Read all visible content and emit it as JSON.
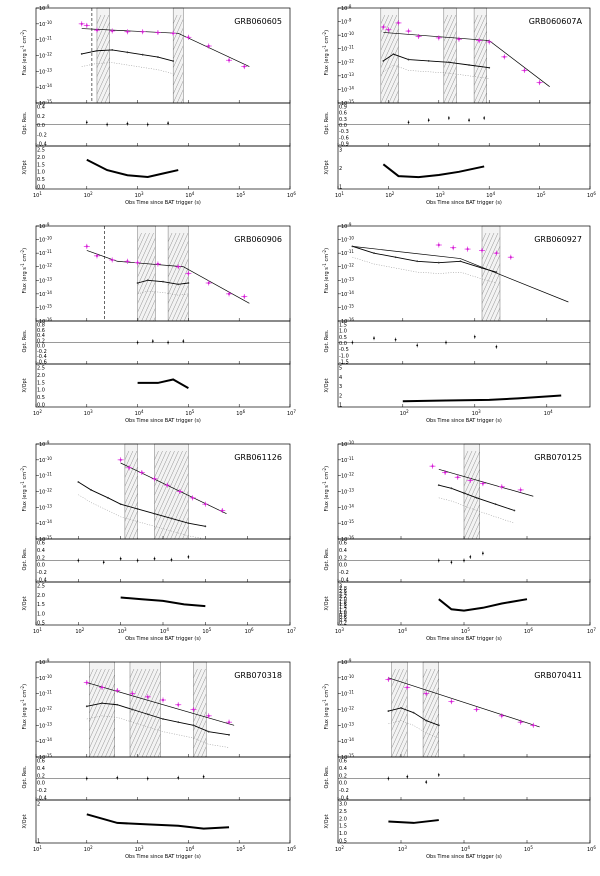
{
  "xlabel": "Obs Time since BAT trigger (s)",
  "labels": {
    "flux_a": "Flux (erg s",
    "flux_b": "cm",
    "res": "Opt. Res.",
    "ratio": "X/Opt"
  },
  "chart_data": [
    {
      "type": "scatter",
      "grb": "GRB060605",
      "xlim_log": [
        1,
        6
      ],
      "flux_ylim_log": [
        -15,
        -9
      ],
      "res_ylim": [
        -0.5,
        0.5
      ],
      "ratio_ylim": [
        0,
        2.5
      ],
      "res_ticks": [
        "0.4",
        "0.2",
        "0.0",
        "-0.2",
        "-0.4"
      ],
      "ratio_ticks": [
        "2.5",
        "2.0",
        "1.5",
        "1.0",
        "0.5",
        "0.0"
      ],
      "vlines": [
        2.1
      ],
      "bands": [
        [
          2.2,
          2.45
        ],
        [
          3.7,
          3.9
        ]
      ],
      "xray": [
        [
          1.9,
          -10
        ],
        [
          2.0,
          -10.1
        ],
        [
          2.2,
          -10.4
        ],
        [
          2.5,
          -10.45
        ],
        [
          2.8,
          -10.5
        ],
        [
          3.1,
          -10.5
        ],
        [
          3.4,
          -10.55
        ],
        [
          3.7,
          -10.6
        ],
        [
          4.0,
          -10.85
        ],
        [
          4.4,
          -11.4
        ],
        [
          4.8,
          -12.3
        ],
        [
          5.1,
          -12.7
        ]
      ],
      "optical": [
        [
          1.9,
          -11.9
        ],
        [
          2.2,
          -11.7
        ],
        [
          2.5,
          -11.65
        ],
        [
          2.8,
          -11.8
        ],
        [
          3.1,
          -11.95
        ],
        [
          3.4,
          -12.1
        ],
        [
          3.7,
          -12.35
        ]
      ],
      "fit_x": [
        [
          1.9,
          -10.3
        ],
        [
          3.8,
          -10.6
        ],
        [
          5.2,
          -12.7
        ]
      ],
      "ratio": [
        [
          2.0,
          1.7
        ],
        [
          2.4,
          1.1
        ],
        [
          2.8,
          0.8
        ],
        [
          3.2,
          0.7
        ],
        [
          3.5,
          0.9
        ],
        [
          3.8,
          1.1
        ]
      ],
      "res": [
        [
          2.0,
          0.05
        ],
        [
          2.4,
          0.0
        ],
        [
          2.8,
          0.02
        ],
        [
          3.2,
          0.0
        ],
        [
          3.6,
          0.03
        ]
      ]
    },
    {
      "type": "scatter",
      "grb": "GRB060607A",
      "xlim_log": [
        1,
        6
      ],
      "flux_ylim_log": [
        -15,
        -8
      ],
      "res_ylim": [
        -1,
        1
      ],
      "ratio_ylim": [
        0,
        4
      ],
      "res_ticks": [
        "0.9",
        "0.6",
        "0.3",
        "0.0",
        "-0.3",
        "-0.6",
        "-0.9"
      ],
      "ratio_ticks": [
        "3",
        "2",
        "1"
      ],
      "vlines": [],
      "bands": [
        [
          1.85,
          2.2
        ],
        [
          3.1,
          3.35
        ],
        [
          3.7,
          3.95
        ]
      ],
      "xray": [
        [
          1.9,
          -9.4
        ],
        [
          2.0,
          -9.6
        ],
        [
          2.2,
          -9.1
        ],
        [
          2.4,
          -9.7
        ],
        [
          2.6,
          -10.1
        ],
        [
          3.0,
          -10.2
        ],
        [
          3.4,
          -10.3
        ],
        [
          3.8,
          -10.4
        ],
        [
          4.0,
          -10.5
        ],
        [
          4.3,
          -11.6
        ],
        [
          4.7,
          -12.6
        ],
        [
          5.0,
          -13.5
        ]
      ],
      "optical": [
        [
          1.9,
          -11.9
        ],
        [
          2.1,
          -11.4
        ],
        [
          2.4,
          -11.8
        ],
        [
          2.8,
          -11.9
        ],
        [
          3.2,
          -12.0
        ],
        [
          3.6,
          -12.2
        ],
        [
          4.0,
          -12.4
        ]
      ],
      "fit_x": [
        [
          1.9,
          -9.8
        ],
        [
          4.0,
          -10.4
        ],
        [
          5.2,
          -13.8
        ]
      ],
      "ratio": [
        [
          1.9,
          2.3
        ],
        [
          2.2,
          1.2
        ],
        [
          2.6,
          1.1
        ],
        [
          3.0,
          1.3
        ],
        [
          3.4,
          1.6
        ],
        [
          3.9,
          2.1
        ]
      ],
      "res": [
        [
          2.4,
          0.1
        ],
        [
          2.8,
          0.2
        ],
        [
          3.2,
          0.3
        ],
        [
          3.6,
          0.2
        ],
        [
          3.9,
          0.3
        ]
      ]
    },
    {
      "type": "scatter",
      "grb": "GRB060906",
      "xlim_log": [
        2,
        7
      ],
      "flux_ylim_log": [
        -16,
        -9
      ],
      "res_ylim": [
        -0.8,
        0.8
      ],
      "ratio_ylim": [
        0,
        2.5
      ],
      "res_ticks": [
        "0.8",
        "0.6",
        "0.4",
        "0.2",
        "0.0",
        "-0.2",
        "-0.4",
        "-0.6"
      ],
      "ratio_ticks": [
        "2.5",
        "2.0",
        "1.5",
        "1.0",
        "0.5",
        "0.0"
      ],
      "vlines": [
        3.35
      ],
      "bands": [
        [
          4.0,
          4.35
        ],
        [
          4.6,
          5.0
        ]
      ],
      "xray": [
        [
          3.0,
          -10.5
        ],
        [
          3.2,
          -11.2
        ],
        [
          3.5,
          -11.5
        ],
        [
          3.8,
          -11.6
        ],
        [
          4.0,
          -11.7
        ],
        [
          4.4,
          -11.8
        ],
        [
          4.8,
          -12.0
        ],
        [
          5.0,
          -12.5
        ],
        [
          5.4,
          -13.2
        ],
        [
          5.8,
          -14.0
        ],
        [
          6.1,
          -14.2
        ]
      ],
      "optical": [
        [
          4.0,
          -13.2
        ],
        [
          4.2,
          -13.0
        ],
        [
          4.5,
          -13.1
        ],
        [
          4.8,
          -13.3
        ],
        [
          5.0,
          -13.2
        ]
      ],
      "fit_x": [
        [
          3.0,
          -10.8
        ],
        [
          3.6,
          -11.6
        ],
        [
          4.9,
          -12.0
        ],
        [
          6.2,
          -14.7
        ]
      ],
      "ratio": [
        [
          4.0,
          1.4
        ],
        [
          4.4,
          1.4
        ],
        [
          4.7,
          1.6
        ],
        [
          5.0,
          1.1
        ]
      ],
      "res": [
        [
          4.0,
          0.0
        ],
        [
          4.3,
          0.05
        ],
        [
          4.6,
          0.0
        ],
        [
          4.9,
          0.05
        ]
      ]
    },
    {
      "type": "scatter",
      "grb": "GRB060927",
      "xlim_log": [
        1.1,
        4.6
      ],
      "flux_ylim_log": [
        -16,
        -9
      ],
      "res_ylim": [
        -1.5,
        1.5
      ],
      "ratio_ylim": [
        0,
        6
      ],
      "res_ticks": [
        "1.5",
        "1.0",
        "0.5",
        "0.0",
        "-0.5",
        "-1.0",
        "-1.5"
      ],
      "ratio_ticks": [
        "5",
        "4",
        "3",
        "2",
        "1"
      ],
      "vlines": [],
      "bands": [
        [
          3.1,
          3.35
        ]
      ],
      "xray": [
        [
          2.5,
          -10.4
        ],
        [
          2.7,
          -10.6
        ],
        [
          2.9,
          -10.7
        ],
        [
          3.1,
          -10.8
        ],
        [
          3.3,
          -11.0
        ],
        [
          3.5,
          -11.3
        ]
      ],
      "optical": [
        [
          1.3,
          -10.5
        ],
        [
          1.6,
          -11.0
        ],
        [
          1.9,
          -11.3
        ],
        [
          2.2,
          -11.6
        ],
        [
          2.5,
          -11.7
        ],
        [
          2.8,
          -11.6
        ],
        [
          3.1,
          -12.1
        ],
        [
          3.3,
          -12.4
        ]
      ],
      "fit_x": [
        [
          1.3,
          -10.5
        ],
        [
          2.8,
          -11.4
        ],
        [
          4.3,
          -14.6
        ]
      ],
      "ratio": [
        [
          2.0,
          0.8
        ],
        [
          2.6,
          0.9
        ],
        [
          3.2,
          1.0
        ],
        [
          3.6,
          1.2
        ],
        [
          4.2,
          1.6
        ]
      ],
      "res": [
        [
          1.3,
          0.0
        ],
        [
          1.6,
          0.3
        ],
        [
          1.9,
          0.2
        ],
        [
          2.2,
          -0.2
        ],
        [
          2.6,
          0.0
        ],
        [
          3.0,
          0.4
        ],
        [
          3.3,
          -0.3
        ]
      ]
    },
    {
      "type": "scatter",
      "grb": "GRB061126",
      "xlim_log": [
        1,
        7
      ],
      "flux_ylim_log": [
        -15,
        -9
      ],
      "res_ylim": [
        -0.6,
        0.6
      ],
      "ratio_ylim": [
        0,
        2.5
      ],
      "res_ticks": [
        "0.6",
        "0.4",
        "0.2",
        "0.0",
        "-0.2",
        "-0.4"
      ],
      "ratio_ticks": [
        "2.5",
        "2.0",
        "1.5",
        "1.0",
        "0.5"
      ],
      "vlines": [],
      "bands": [
        [
          3.1,
          3.4
        ],
        [
          3.8,
          4.6
        ]
      ],
      "xray": [
        [
          3.0,
          -10.0
        ],
        [
          3.2,
          -10.5
        ],
        [
          3.5,
          -10.8
        ],
        [
          3.8,
          -11.2
        ],
        [
          4.1,
          -11.6
        ],
        [
          4.4,
          -12.0
        ],
        [
          4.7,
          -12.4
        ],
        [
          5.0,
          -12.8
        ],
        [
          5.4,
          -13.2
        ]
      ],
      "optical": [
        [
          2.0,
          -11.4
        ],
        [
          2.3,
          -11.9
        ],
        [
          2.7,
          -12.4
        ],
        [
          3.0,
          -12.8
        ],
        [
          3.4,
          -13.1
        ],
        [
          3.8,
          -13.4
        ],
        [
          4.2,
          -13.7
        ],
        [
          4.6,
          -14.0
        ],
        [
          5.0,
          -14.2
        ]
      ],
      "fit_x": [
        [
          3.0,
          -10.2
        ],
        [
          5.5,
          -13.4
        ]
      ],
      "ratio": [
        [
          3.0,
          1.6
        ],
        [
          3.5,
          1.5
        ],
        [
          4.0,
          1.4
        ],
        [
          4.5,
          1.2
        ],
        [
          5.0,
          1.1
        ]
      ],
      "res": [
        [
          2.0,
          0.0
        ],
        [
          2.6,
          -0.05
        ],
        [
          3.0,
          0.05
        ],
        [
          3.4,
          0.0
        ],
        [
          3.8,
          0.05
        ],
        [
          4.2,
          0.02
        ],
        [
          4.6,
          0.1
        ]
      ]
    },
    {
      "type": "scatter",
      "grb": "GRB070125",
      "xlim_log": [
        3,
        7
      ],
      "flux_ylim_log": [
        -16,
        -10
      ],
      "res_ylim": [
        -0.6,
        0.6
      ],
      "ratio_ylim": [
        0,
        3
      ],
      "res_ticks": [
        "0.6",
        "0.4",
        "0.2",
        "0.0",
        "-0.2",
        "-0.4"
      ],
      "ratio_ticks": [
        "3",
        "2.8",
        "2.6",
        "2.4",
        "2.2",
        "2.0",
        "1.8",
        "1.6",
        "1.4",
        "1.2",
        "1.0",
        "0.8",
        "0.6",
        "0.4",
        "0.2"
      ],
      "vlines": [],
      "bands": [
        [
          5.0,
          5.25
        ]
      ],
      "xray": [
        [
          4.5,
          -11.4
        ],
        [
          4.7,
          -11.8
        ],
        [
          4.9,
          -12.1
        ],
        [
          5.1,
          -12.3
        ],
        [
          5.3,
          -12.5
        ],
        [
          5.6,
          -12.7
        ],
        [
          5.9,
          -12.9
        ]
      ],
      "optical": [
        [
          4.6,
          -12.6
        ],
        [
          4.8,
          -12.8
        ],
        [
          5.0,
          -13.1
        ],
        [
          5.2,
          -13.4
        ],
        [
          5.5,
          -13.8
        ],
        [
          5.8,
          -14.2
        ]
      ],
      "fit_x": [
        [
          4.6,
          -11.6
        ],
        [
          6.1,
          -13.3
        ]
      ],
      "ratio": [
        [
          4.6,
          1.8
        ],
        [
          4.8,
          1.1
        ],
        [
          5.0,
          1.0
        ],
        [
          5.3,
          1.2
        ],
        [
          5.6,
          1.5
        ],
        [
          6.0,
          1.8
        ]
      ],
      "res": [
        [
          4.6,
          0.0
        ],
        [
          4.8,
          -0.05
        ],
        [
          5.0,
          0.0
        ],
        [
          5.1,
          0.1
        ],
        [
          5.3,
          0.2
        ]
      ]
    },
    {
      "type": "scatter",
      "grb": "GRB070318",
      "xlim_log": [
        1,
        6
      ],
      "flux_ylim_log": [
        -15,
        -9
      ],
      "res_ylim": [
        -0.6,
        0.6
      ],
      "ratio_ylim": [
        0,
        3
      ],
      "res_ticks": [
        "0.6",
        "0.4",
        "0.2",
        "0.0",
        "-0.2",
        "-0.4"
      ],
      "ratio_ticks": [
        "2",
        "1"
      ],
      "vlines": [],
      "bands": [
        [
          2.05,
          2.55
        ],
        [
          2.85,
          3.45
        ],
        [
          4.1,
          4.35
        ]
      ],
      "xray": [
        [
          2.0,
          -10.3
        ],
        [
          2.3,
          -10.6
        ],
        [
          2.6,
          -10.8
        ],
        [
          2.9,
          -11.0
        ],
        [
          3.2,
          -11.2
        ],
        [
          3.5,
          -11.4
        ],
        [
          3.8,
          -11.7
        ],
        [
          4.1,
          -12.0
        ],
        [
          4.4,
          -12.4
        ],
        [
          4.8,
          -12.8
        ]
      ],
      "optical": [
        [
          2.0,
          -11.8
        ],
        [
          2.3,
          -11.6
        ],
        [
          2.6,
          -11.7
        ],
        [
          2.9,
          -12.0
        ],
        [
          3.2,
          -12.3
        ],
        [
          3.5,
          -12.6
        ],
        [
          3.8,
          -12.8
        ],
        [
          4.1,
          -13.0
        ],
        [
          4.4,
          -13.4
        ],
        [
          4.8,
          -13.6
        ]
      ],
      "fit_x": [
        [
          2.0,
          -10.3
        ],
        [
          4.9,
          -13.0
        ]
      ],
      "ratio": [
        [
          2.0,
          2.0
        ],
        [
          2.6,
          1.4
        ],
        [
          3.2,
          1.3
        ],
        [
          3.8,
          1.2
        ],
        [
          4.3,
          1.0
        ],
        [
          4.8,
          1.1
        ]
      ],
      "res": [
        [
          2.0,
          0.0
        ],
        [
          2.6,
          0.02
        ],
        [
          3.2,
          0.0
        ],
        [
          3.8,
          0.02
        ],
        [
          4.3,
          0.05
        ]
      ]
    },
    {
      "type": "scatter",
      "grb": "GRB070411",
      "xlim_log": [
        2,
        6
      ],
      "flux_ylim_log": [
        -15,
        -9
      ],
      "res_ylim": [
        -0.6,
        0.6
      ],
      "ratio_ylim": [
        0,
        3
      ],
      "res_ticks": [
        "0.6",
        "0.4",
        "0.2",
        "0.0",
        "-0.2",
        "-0.4"
      ],
      "ratio_ticks": [
        "3.0",
        "2.5",
        "2.0",
        "1.5",
        "1.0",
        "0.5"
      ],
      "vlines": [],
      "bands": [
        [
          2.85,
          3.1
        ],
        [
          3.35,
          3.6
        ]
      ],
      "xray": [
        [
          2.8,
          -10.1
        ],
        [
          3.1,
          -10.6
        ],
        [
          3.4,
          -11.0
        ],
        [
          3.8,
          -11.5
        ],
        [
          4.2,
          -12.0
        ],
        [
          4.6,
          -12.4
        ],
        [
          4.9,
          -12.8
        ],
        [
          5.1,
          -13.0
        ]
      ],
      "optical": [
        [
          2.8,
          -12.1
        ],
        [
          3.0,
          -11.9
        ],
        [
          3.2,
          -12.2
        ],
        [
          3.4,
          -12.7
        ],
        [
          3.6,
          -13.0
        ]
      ],
      "fit_x": [
        [
          2.8,
          -10.0
        ],
        [
          5.2,
          -13.1
        ]
      ],
      "ratio": [
        [
          2.8,
          1.5
        ],
        [
          3.2,
          1.4
        ],
        [
          3.6,
          1.6
        ]
      ],
      "res": [
        [
          2.8,
          0.0
        ],
        [
          3.1,
          0.05
        ],
        [
          3.4,
          -0.1
        ],
        [
          3.6,
          0.1
        ]
      ]
    }
  ]
}
